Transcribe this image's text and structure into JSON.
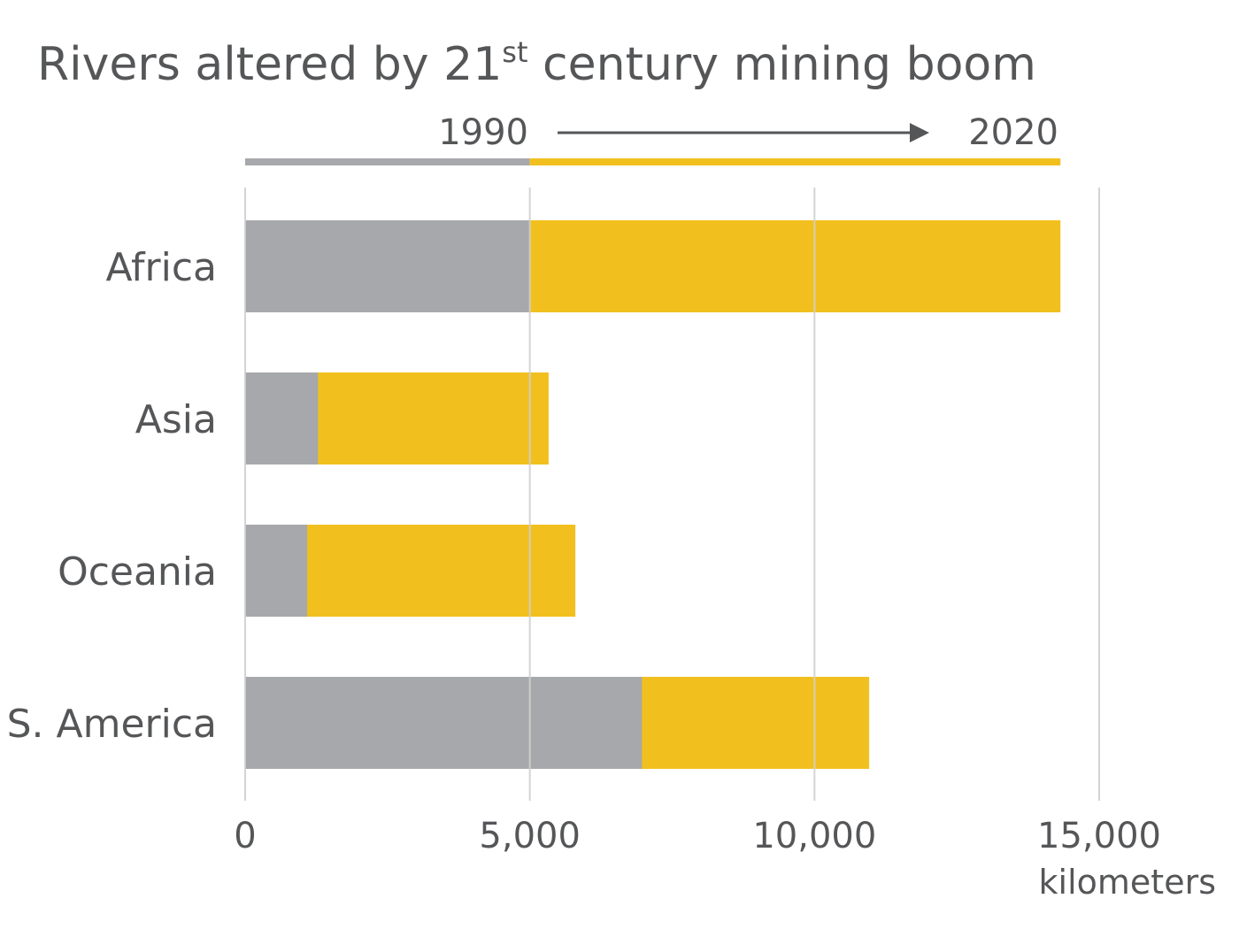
{
  "chart_data": {
    "type": "bar",
    "orientation": "horizontal",
    "title": "Rivers altered by 21",
    "title_sup": "st",
    "title_rest": " century mining boom",
    "legend": {
      "start_label": "1990",
      "end_label": "2020",
      "placement": "top"
    },
    "categories": [
      "Africa",
      "Asia",
      "Oceania",
      "S. America"
    ],
    "series": [
      {
        "name": "1990",
        "values": [
          5000,
          1280,
          1090,
          6970
        ],
        "color": "#a7a8ab"
      },
      {
        "name": "2020",
        "values": [
          14320,
          5330,
          5800,
          10960
        ],
        "color": "#f2c01e"
      }
    ],
    "xlim": [
      0,
      15000
    ],
    "xticks": [
      0,
      5000,
      10000,
      15000
    ],
    "xtick_labels": [
      "0",
      "5,000",
      "10,000",
      "15,000"
    ],
    "xlabel": "kilometers",
    "grid": true
  }
}
